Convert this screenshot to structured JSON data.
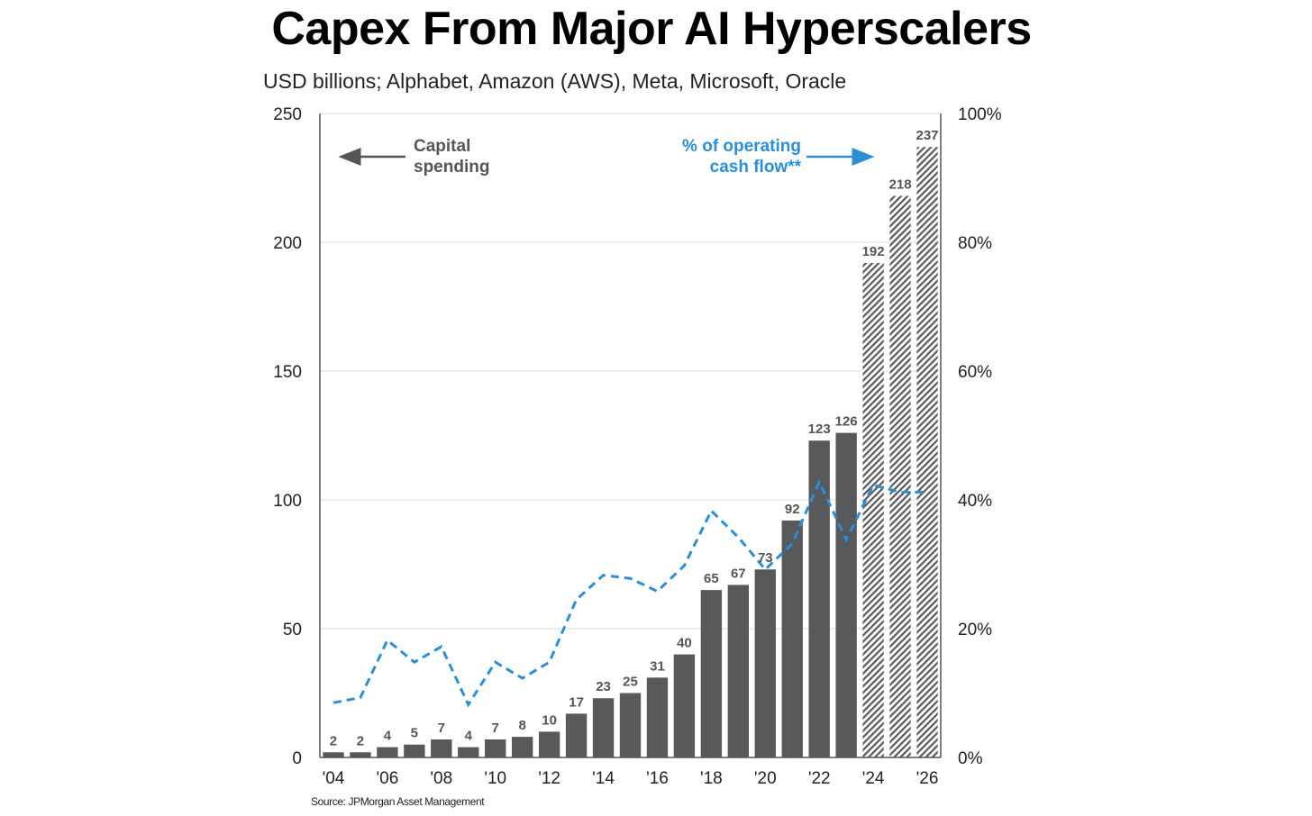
{
  "chart_data": {
    "type": "bar",
    "title": "Capex From Major AI Hyperscalers",
    "subtitle": "USD billions; Alphabet, Amazon (AWS), Meta, Microsoft, Oracle",
    "source": "Source: JPMorgan Asset Management",
    "categories": [
      "2004",
      "2005",
      "2006",
      "2007",
      "2008",
      "2009",
      "2010",
      "2011",
      "2012",
      "2013",
      "2014",
      "2015",
      "2016",
      "2017",
      "2018",
      "2019",
      "2020",
      "2021",
      "2022",
      "2023",
      "2024",
      "2025",
      "2026"
    ],
    "x_tick_labels": [
      "'04",
      "'06",
      "'08",
      "'10",
      "'12",
      "'14",
      "'16",
      "'18",
      "'20",
      "'22",
      "'24",
      "'26"
    ],
    "series": [
      {
        "name": "Capital spending",
        "axis": "left",
        "color": "#58595b",
        "values": [
          2,
          2,
          4,
          5,
          7,
          4,
          7,
          8,
          10,
          17,
          23,
          25,
          31,
          40,
          65,
          67,
          73,
          92,
          123,
          126,
          192,
          218,
          237
        ],
        "estimated_from_index": 20
      },
      {
        "name": "% of operating cash flow**",
        "axis": "right",
        "style": "dashed-line",
        "color": "#2a8fd6",
        "values": [
          8.5,
          9.3,
          18.2,
          14.8,
          17.2,
          8.2,
          14.8,
          12.3,
          14.8,
          24.5,
          28.3,
          27.8,
          25.8,
          29.8,
          38.3,
          34.2,
          29.2,
          33.2,
          42.8,
          33.8,
          42.3,
          41.2,
          41.2
        ]
      }
    ],
    "y_left": {
      "ylim": [
        0,
        250
      ],
      "ticks": [
        "0",
        "50",
        "100",
        "150",
        "200",
        "250"
      ]
    },
    "y_right": {
      "ylim": [
        0,
        100
      ],
      "ticks": [
        "0%",
        "20%",
        "40%",
        "60%",
        "80%",
        "100%"
      ]
    },
    "annotations": {
      "left_arrow_line1": "Capital",
      "left_arrow_line2": "spending",
      "right_arrow_line1": "% of operating",
      "right_arrow_line2": "cash flow**"
    },
    "grid": true
  }
}
